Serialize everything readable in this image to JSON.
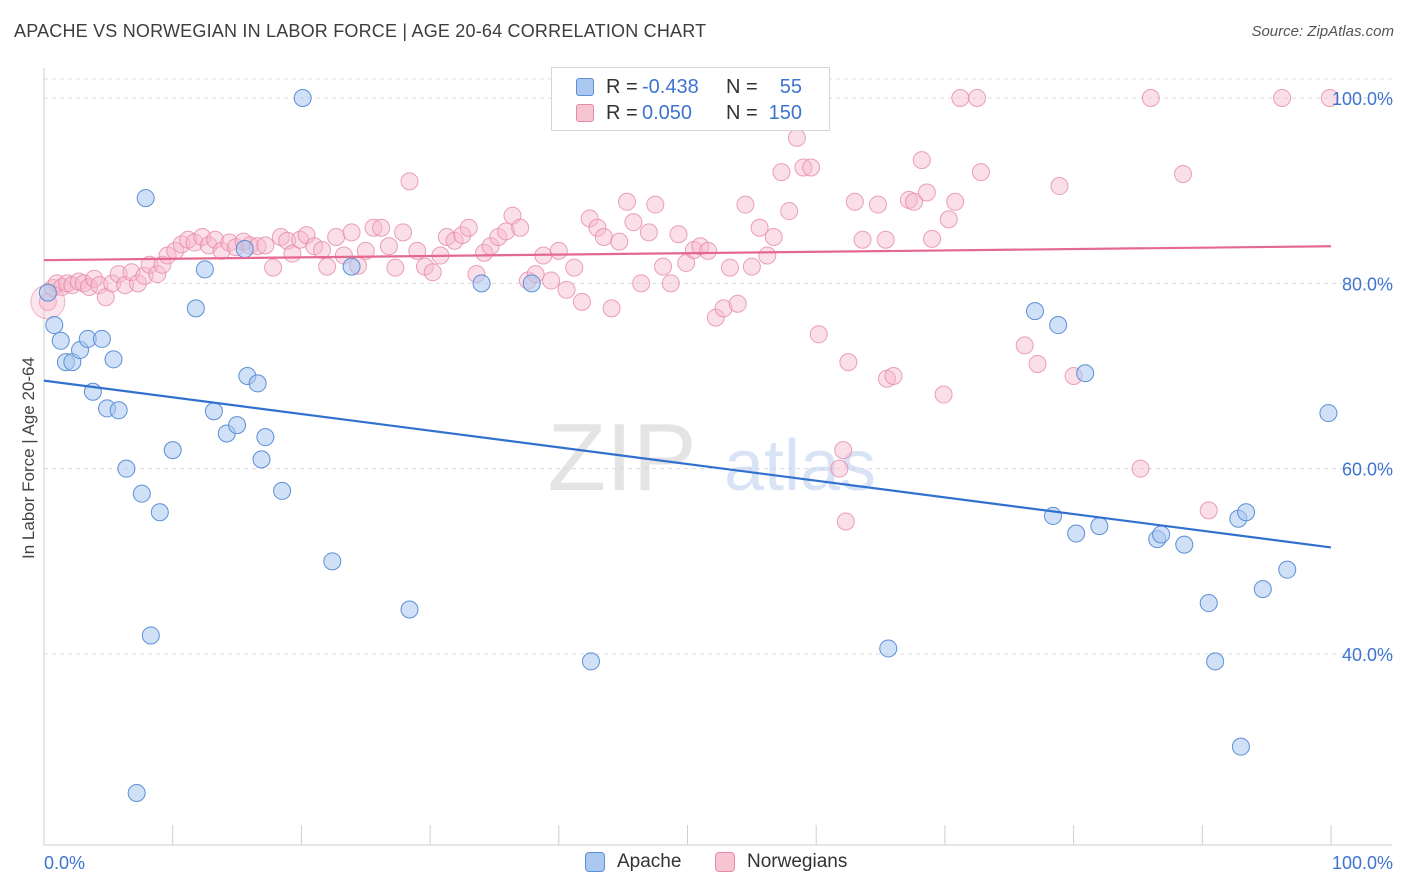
{
  "title": "APACHE VS NORWEGIAN IN LABOR FORCE | AGE 20-64 CORRELATION CHART",
  "source": "Source: ZipAtlas.com",
  "watermark": {
    "zip": "ZIP",
    "atlas": "atlas"
  },
  "legend_top": {
    "apache": {
      "r_label": "R =",
      "r_value": "-0.438",
      "n_label": "N =",
      "n_value": "55"
    },
    "norwegians": {
      "r_label": "R =",
      "r_value": "0.050",
      "n_label": "N =",
      "n_value": "150"
    }
  },
  "colors": {
    "apache_fill": "#aac8f0",
    "apache_stroke": "#5b8fd6",
    "apache_line": "#3070cf",
    "norw_fill": "#f6b8cb",
    "norw_stroke": "#e68aa6",
    "norw_line": "#e5698f",
    "tick_text": "#3d74d1",
    "grid": "#dcdcdc"
  },
  "chart_data": {
    "type": "scatter",
    "title": "APACHE VS NORWEGIAN IN LABOR FORCE | AGE 20-64 CORRELATION CHART",
    "xlabel": "",
    "ylabel": "In Labor Force | Age 20-64",
    "xlim": [
      0,
      100
    ],
    "ylim": [
      20,
      102
    ],
    "x_tick_labels": [
      "0.0%",
      "100.0%"
    ],
    "y_ticks": [
      40,
      60,
      80,
      100
    ],
    "y_tick_labels": [
      "40.0%",
      "60.0%",
      "80.0%",
      "100.0%"
    ],
    "grid": true,
    "legend_position": "bottom",
    "series": [
      {
        "name": "Apache",
        "trend": {
          "x": [
            0,
            100
          ],
          "y": [
            69.5,
            51.5
          ]
        },
        "points": [
          [
            0.3,
            79.0
          ],
          [
            0.8,
            75.5
          ],
          [
            1.3,
            73.8
          ],
          [
            1.7,
            71.5
          ],
          [
            2.2,
            71.5
          ],
          [
            2.8,
            72.8
          ],
          [
            3.4,
            74.0
          ],
          [
            3.8,
            68.3
          ],
          [
            4.5,
            74.0
          ],
          [
            4.9,
            66.5
          ],
          [
            5.4,
            71.8
          ],
          [
            5.8,
            66.3
          ],
          [
            6.4,
            60.0
          ],
          [
            7.2,
            25.0
          ],
          [
            7.6,
            57.3
          ],
          [
            7.9,
            89.2
          ],
          [
            8.3,
            42.0
          ],
          [
            9.0,
            55.3
          ],
          [
            10.0,
            62.0
          ],
          [
            11.8,
            77.3
          ],
          [
            12.5,
            81.5
          ],
          [
            13.2,
            66.2
          ],
          [
            14.2,
            63.8
          ],
          [
            15.0,
            64.7
          ],
          [
            15.6,
            83.7
          ],
          [
            15.8,
            70.0
          ],
          [
            16.6,
            69.2
          ],
          [
            16.9,
            61.0
          ],
          [
            17.2,
            63.4
          ],
          [
            18.5,
            57.6
          ],
          [
            20.1,
            100.0
          ],
          [
            22.4,
            50.0
          ],
          [
            23.9,
            81.8
          ],
          [
            28.4,
            44.8
          ],
          [
            34.0,
            80.0
          ],
          [
            37.9,
            80.0
          ],
          [
            42.5,
            39.2
          ],
          [
            65.6,
            40.6
          ],
          [
            77.0,
            77.0
          ],
          [
            78.4,
            54.9
          ],
          [
            78.8,
            75.5
          ],
          [
            80.2,
            53.0
          ],
          [
            80.9,
            70.3
          ],
          [
            82.0,
            53.8
          ],
          [
            86.5,
            52.4
          ],
          [
            86.8,
            52.9
          ],
          [
            88.6,
            51.8
          ],
          [
            90.5,
            45.5
          ],
          [
            91.0,
            39.2
          ],
          [
            92.8,
            54.6
          ],
          [
            93.0,
            30.0
          ],
          [
            93.4,
            55.3
          ],
          [
            94.7,
            47.0
          ],
          [
            96.6,
            49.1
          ],
          [
            99.8,
            66.0
          ]
        ]
      },
      {
        "name": "Norwegians",
        "trend": {
          "x": [
            0,
            100
          ],
          "y": [
            82.5,
            84.0
          ]
        },
        "points": [
          [
            0.3,
            78.0
          ],
          [
            0.7,
            79.5
          ],
          [
            1.0,
            80.0
          ],
          [
            1.4,
            79.6
          ],
          [
            1.8,
            80.0
          ],
          [
            2.2,
            79.8
          ],
          [
            2.7,
            80.2
          ],
          [
            3.1,
            80.0
          ],
          [
            3.5,
            79.6
          ],
          [
            3.9,
            80.5
          ],
          [
            4.3,
            79.8
          ],
          [
            4.8,
            78.5
          ],
          [
            5.3,
            80.0
          ],
          [
            5.8,
            81.0
          ],
          [
            6.3,
            79.8
          ],
          [
            6.8,
            81.2
          ],
          [
            7.3,
            80.0
          ],
          [
            7.8,
            80.8
          ],
          [
            8.2,
            82.0
          ],
          [
            8.8,
            81.0
          ],
          [
            9.2,
            82.0
          ],
          [
            9.6,
            83.0
          ],
          [
            10.2,
            83.5
          ],
          [
            10.7,
            84.2
          ],
          [
            11.2,
            84.7
          ],
          [
            11.7,
            84.4
          ],
          [
            12.3,
            85.0
          ],
          [
            12.8,
            84.1
          ],
          [
            13.3,
            84.7
          ],
          [
            13.8,
            83.5
          ],
          [
            14.4,
            84.4
          ],
          [
            14.9,
            83.9
          ],
          [
            15.5,
            84.5
          ],
          [
            16.0,
            84.1
          ],
          [
            16.6,
            84.0
          ],
          [
            17.2,
            84.1
          ],
          [
            17.8,
            81.7
          ],
          [
            18.4,
            85.0
          ],
          [
            18.9,
            84.6
          ],
          [
            19.3,
            83.2
          ],
          [
            19.9,
            84.7
          ],
          [
            20.4,
            85.2
          ],
          [
            21.0,
            84.0
          ],
          [
            21.6,
            83.6
          ],
          [
            22.0,
            81.8
          ],
          [
            22.7,
            85.0
          ],
          [
            23.3,
            83.0
          ],
          [
            23.9,
            85.5
          ],
          [
            24.4,
            81.9
          ],
          [
            25.0,
            83.5
          ],
          [
            25.6,
            86.0
          ],
          [
            26.2,
            86.0
          ],
          [
            26.8,
            84.0
          ],
          [
            27.3,
            81.7
          ],
          [
            27.9,
            85.5
          ],
          [
            28.4,
            91.0
          ],
          [
            29.0,
            83.5
          ],
          [
            29.6,
            81.8
          ],
          [
            30.2,
            81.2
          ],
          [
            30.8,
            83.0
          ],
          [
            31.3,
            85.0
          ],
          [
            31.9,
            84.6
          ],
          [
            32.5,
            85.2
          ],
          [
            33.0,
            86.0
          ],
          [
            33.6,
            81.0
          ],
          [
            34.2,
            83.3
          ],
          [
            34.7,
            84.0
          ],
          [
            35.3,
            85.0
          ],
          [
            35.9,
            85.6
          ],
          [
            36.4,
            87.3
          ],
          [
            37.0,
            86.0
          ],
          [
            37.6,
            80.3
          ],
          [
            38.2,
            81.0
          ],
          [
            38.8,
            83.0
          ],
          [
            39.4,
            80.3
          ],
          [
            40.0,
            83.5
          ],
          [
            40.6,
            79.3
          ],
          [
            41.2,
            81.7
          ],
          [
            41.8,
            78.0
          ],
          [
            42.4,
            87.0
          ],
          [
            43.0,
            86.0
          ],
          [
            43.5,
            85.0
          ],
          [
            44.1,
            77.3
          ],
          [
            44.7,
            84.5
          ],
          [
            45.3,
            88.8
          ],
          [
            45.8,
            86.6
          ],
          [
            46.4,
            80.0
          ],
          [
            47.0,
            85.5
          ],
          [
            47.5,
            88.5
          ],
          [
            48.1,
            81.8
          ],
          [
            48.7,
            80.0
          ],
          [
            49.3,
            85.3
          ],
          [
            49.9,
            82.2
          ],
          [
            50.5,
            83.6
          ],
          [
            51.0,
            84.0
          ],
          [
            51.6,
            83.5
          ],
          [
            52.2,
            76.3
          ],
          [
            52.8,
            77.3
          ],
          [
            53.3,
            81.7
          ],
          [
            53.9,
            77.8
          ],
          [
            54.5,
            88.5
          ],
          [
            55.0,
            81.8
          ],
          [
            55.6,
            86.0
          ],
          [
            56.2,
            83.0
          ],
          [
            56.7,
            85.0
          ],
          [
            57.3,
            92.0
          ],
          [
            57.9,
            87.8
          ],
          [
            58.5,
            95.7
          ],
          [
            59.0,
            92.5
          ],
          [
            59.6,
            92.5
          ],
          [
            60.2,
            74.5
          ],
          [
            61.8,
            60.0
          ],
          [
            62.1,
            62.0
          ],
          [
            62.5,
            71.5
          ],
          [
            63.0,
            88.8
          ],
          [
            63.6,
            84.7
          ],
          [
            64.8,
            88.5
          ],
          [
            65.4,
            84.7
          ],
          [
            65.5,
            69.7
          ],
          [
            66.0,
            70.0
          ],
          [
            67.2,
            89.0
          ],
          [
            67.6,
            88.8
          ],
          [
            68.2,
            93.3
          ],
          [
            68.6,
            89.8
          ],
          [
            69.0,
            84.8
          ],
          [
            69.9,
            68.0
          ],
          [
            70.3,
            86.9
          ],
          [
            70.8,
            88.8
          ],
          [
            71.2,
            100.0
          ],
          [
            72.5,
            100.0
          ],
          [
            72.8,
            92.0
          ],
          [
            76.2,
            73.3
          ],
          [
            77.2,
            71.3
          ],
          [
            78.9,
            90.5
          ],
          [
            80.0,
            70.0
          ],
          [
            85.2,
            60.0
          ],
          [
            86.0,
            100.0
          ],
          [
            88.5,
            91.8
          ],
          [
            90.5,
            55.5
          ],
          [
            96.2,
            100.0
          ],
          [
            99.9,
            100.0
          ],
          [
            62.3,
            54.3
          ]
        ]
      }
    ]
  }
}
